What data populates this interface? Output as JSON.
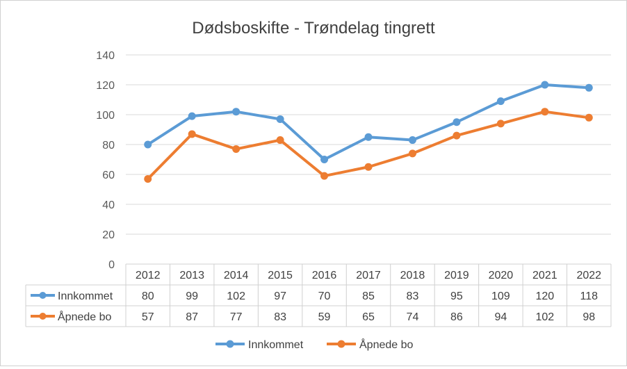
{
  "chart_data": {
    "type": "line",
    "title": "Dødsboskifte - Trøndelag tingrett",
    "categories": [
      "2012",
      "2013",
      "2014",
      "2015",
      "2016",
      "2017",
      "2018",
      "2019",
      "2020",
      "2021",
      "2022"
    ],
    "series": [
      {
        "name": "Innkommet",
        "values": [
          80,
          99,
          102,
          97,
          70,
          85,
          83,
          95,
          109,
          120,
          118
        ],
        "color": "#5b9bd5"
      },
      {
        "name": "Åpnede bo",
        "values": [
          57,
          87,
          77,
          83,
          59,
          65,
          74,
          86,
          94,
          102,
          98
        ],
        "color": "#ed7d31"
      }
    ],
    "yticks": [
      0,
      20,
      40,
      60,
      80,
      100,
      120,
      140
    ],
    "ylim": [
      0,
      140
    ],
    "grid": true,
    "data_table": true,
    "legend_position": "bottom"
  }
}
